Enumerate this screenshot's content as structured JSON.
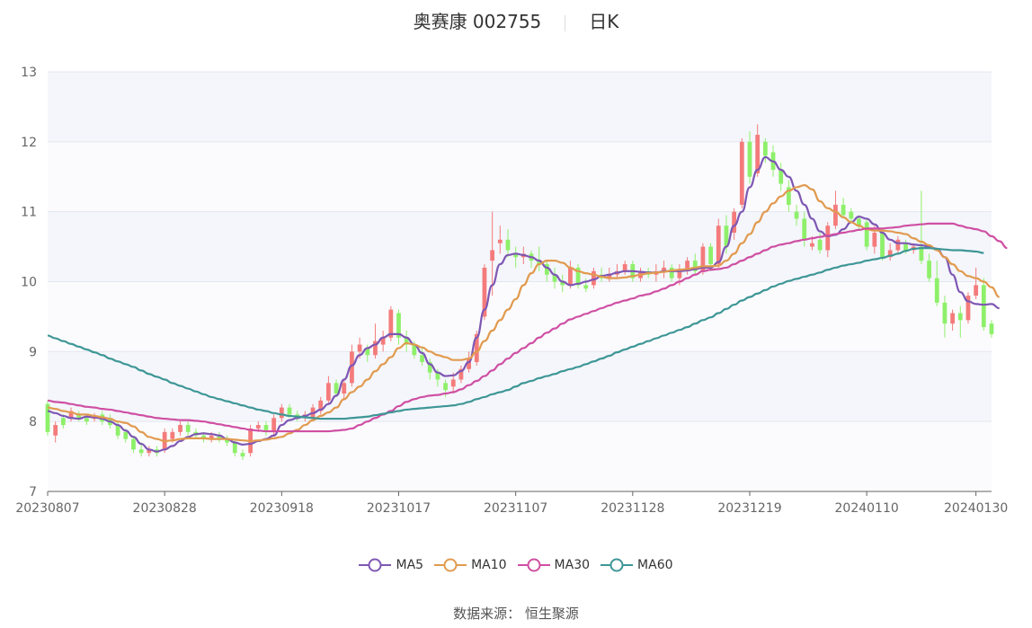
{
  "header": {
    "stock": "奥赛康 002755",
    "period": "日K"
  },
  "source": "数据来源： 恒生聚源",
  "colors": {
    "up": "#f47b7b",
    "down": "#8ef06a",
    "MA5": "#7e57b3",
    "MA10": "#e19a4f",
    "MA30": "#cf4fa3",
    "MA60": "#3e9696"
  },
  "chart_data": {
    "type": "candlestick",
    "ylim": [
      7,
      13
    ],
    "y_ticks": [
      "7",
      "8",
      "9",
      "10",
      "11",
      "12",
      "13"
    ],
    "x_tick_labels": [
      {
        "index": 0,
        "label": "20230807"
      },
      {
        "index": 15,
        "label": "20230828"
      },
      {
        "index": 30,
        "label": "20230918"
      },
      {
        "index": 45,
        "label": "20231017"
      },
      {
        "index": 60,
        "label": "20231107"
      },
      {
        "index": 75,
        "label": "20231128"
      },
      {
        "index": 90,
        "label": "20231219"
      },
      {
        "index": 105,
        "label": "20240110"
      },
      {
        "index": 119,
        "label": "20240130"
      }
    ],
    "grid": true,
    "legend_position": "bottom",
    "candles": [
      [
        8.25,
        7.85,
        8.3,
        7.8
      ],
      [
        7.8,
        7.95,
        8.0,
        7.7
      ],
      [
        8.05,
        7.95,
        8.1,
        7.9
      ],
      [
        8.05,
        8.15,
        8.2,
        8.0
      ],
      [
        8.1,
        8.05,
        8.15,
        8.0
      ],
      [
        8.05,
        8.0,
        8.1,
        7.95
      ],
      [
        8.05,
        8.05,
        8.12,
        8.0
      ],
      [
        8.1,
        8.0,
        8.15,
        7.95
      ],
      [
        8.05,
        7.95,
        8.1,
        7.9
      ],
      [
        7.95,
        7.8,
        8.0,
        7.75
      ],
      [
        7.85,
        7.75,
        7.9,
        7.7
      ],
      [
        7.75,
        7.6,
        7.8,
        7.55
      ],
      [
        7.6,
        7.55,
        7.7,
        7.5
      ],
      [
        7.55,
        7.6,
        7.65,
        7.5
      ],
      [
        7.6,
        7.55,
        7.65,
        7.5
      ],
      [
        7.6,
        7.85,
        7.9,
        7.55
      ],
      [
        7.75,
        7.85,
        7.9,
        7.7
      ],
      [
        7.85,
        7.95,
        8.0,
        7.8
      ],
      [
        7.95,
        7.85,
        8.0,
        7.8
      ],
      [
        7.85,
        7.8,
        7.9,
        7.75
      ],
      [
        7.8,
        7.75,
        7.85,
        7.7
      ],
      [
        7.75,
        7.8,
        7.85,
        7.7
      ],
      [
        7.8,
        7.75,
        7.85,
        7.7
      ],
      [
        7.75,
        7.7,
        7.8,
        7.65
      ],
      [
        7.7,
        7.55,
        7.75,
        7.5
      ],
      [
        7.55,
        7.5,
        7.6,
        7.45
      ],
      [
        7.55,
        7.9,
        7.95,
        7.5
      ],
      [
        7.9,
        7.95,
        8.0,
        7.85
      ],
      [
        7.95,
        7.85,
        8.0,
        7.8
      ],
      [
        7.85,
        8.05,
        8.1,
        7.8
      ],
      [
        8.05,
        8.2,
        8.25,
        8.0
      ],
      [
        8.2,
        8.1,
        8.25,
        8.05
      ],
      [
        8.1,
        8.05,
        8.15,
        8.0
      ],
      [
        8.05,
        8.1,
        8.15,
        8.0
      ],
      [
        8.05,
        8.2,
        8.25,
        8.0
      ],
      [
        8.15,
        8.3,
        8.35,
        8.1
      ],
      [
        8.3,
        8.55,
        8.65,
        8.25
      ],
      [
        8.55,
        8.4,
        8.6,
        8.35
      ],
      [
        8.4,
        8.55,
        8.6,
        8.3
      ],
      [
        8.55,
        9.0,
        9.1,
        8.5
      ],
      [
        9.0,
        9.1,
        9.2,
        8.9
      ],
      [
        9.05,
        8.95,
        9.1,
        8.85
      ],
      [
        8.95,
        9.15,
        9.4,
        8.9
      ],
      [
        9.1,
        9.2,
        9.3,
        9.0
      ],
      [
        9.2,
        9.6,
        9.65,
        9.15
      ],
      [
        9.55,
        9.2,
        9.6,
        9.1
      ],
      [
        9.2,
        9.1,
        9.3,
        9.0
      ],
      [
        9.1,
        8.95,
        9.15,
        8.9
      ],
      [
        8.95,
        8.85,
        9.05,
        8.8
      ],
      [
        8.85,
        8.7,
        8.9,
        8.6
      ],
      [
        8.7,
        8.6,
        8.75,
        8.5
      ],
      [
        8.55,
        8.45,
        8.6,
        8.35
      ],
      [
        8.5,
        8.6,
        8.7,
        8.4
      ],
      [
        8.6,
        8.75,
        8.8,
        8.55
      ],
      [
        8.75,
        8.9,
        9.0,
        8.7
      ],
      [
        8.85,
        9.25,
        9.3,
        8.8
      ],
      [
        9.5,
        10.2,
        10.25,
        9.45
      ],
      [
        10.3,
        10.45,
        11.0,
        9.8
      ],
      [
        10.55,
        10.6,
        10.8,
        10.4
      ],
      [
        10.6,
        10.45,
        10.75,
        10.35
      ],
      [
        10.4,
        10.35,
        10.5,
        10.2
      ],
      [
        10.35,
        10.4,
        10.5,
        10.25
      ],
      [
        10.4,
        10.3,
        10.45,
        10.2
      ],
      [
        10.3,
        10.25,
        10.5,
        10.15
      ],
      [
        10.25,
        10.1,
        10.3,
        10.0
      ],
      [
        10.1,
        10.0,
        10.2,
        9.9
      ],
      [
        10.0,
        9.95,
        10.1,
        9.85
      ],
      [
        9.95,
        10.2,
        10.3,
        9.9
      ],
      [
        10.2,
        9.95,
        10.25,
        9.9
      ],
      [
        9.95,
        9.9,
        10.05,
        9.85
      ],
      [
        9.95,
        10.15,
        10.2,
        9.9
      ],
      [
        10.1,
        10.05,
        10.2,
        10.0
      ],
      [
        10.05,
        10.1,
        10.2,
        10.0
      ],
      [
        10.1,
        10.15,
        10.25,
        10.05
      ],
      [
        10.15,
        10.25,
        10.3,
        10.1
      ],
      [
        10.25,
        10.05,
        10.3,
        10.0
      ],
      [
        10.05,
        10.15,
        10.2,
        10.0
      ],
      [
        10.15,
        10.1,
        10.2,
        10.05
      ],
      [
        10.1,
        10.15,
        10.25,
        10.0
      ],
      [
        10.15,
        10.2,
        10.3,
        10.05
      ],
      [
        10.2,
        10.05,
        10.25,
        10.0
      ],
      [
        10.05,
        10.15,
        10.25,
        9.95
      ],
      [
        10.15,
        10.3,
        10.35,
        10.1
      ],
      [
        10.3,
        10.15,
        10.4,
        10.1
      ],
      [
        10.15,
        10.5,
        10.55,
        10.1
      ],
      [
        10.5,
        10.25,
        10.55,
        10.15
      ],
      [
        10.25,
        10.8,
        10.9,
        10.2
      ],
      [
        10.8,
        10.5,
        10.95,
        10.4
      ],
      [
        10.7,
        11.0,
        11.05,
        10.6
      ],
      [
        11.1,
        12.0,
        12.05,
        11.05
      ],
      [
        12.0,
        11.5,
        12.15,
        11.4
      ],
      [
        11.55,
        12.1,
        12.25,
        11.5
      ],
      [
        12.0,
        11.8,
        12.05,
        11.7
      ],
      [
        11.85,
        11.6,
        11.95,
        11.5
      ],
      [
        11.6,
        11.4,
        11.7,
        11.3
      ],
      [
        11.35,
        11.1,
        11.45,
        11.0
      ],
      [
        11.0,
        10.9,
        11.1,
        10.8
      ],
      [
        10.9,
        10.6,
        11.0,
        10.5
      ],
      [
        10.5,
        10.55,
        10.65,
        10.45
      ],
      [
        10.6,
        10.45,
        10.7,
        10.4
      ],
      [
        10.45,
        10.8,
        10.85,
        10.35
      ],
      [
        10.8,
        11.1,
        11.3,
        10.75
      ],
      [
        11.1,
        10.95,
        11.2,
        10.9
      ],
      [
        11.0,
        10.9,
        11.05,
        10.85
      ],
      [
        10.9,
        10.8,
        10.95,
        10.75
      ],
      [
        10.85,
        10.5,
        10.9,
        10.45
      ],
      [
        10.5,
        10.7,
        10.8,
        10.4
      ],
      [
        10.7,
        10.35,
        10.75,
        10.3
      ],
      [
        10.35,
        10.45,
        10.55,
        10.3
      ],
      [
        10.45,
        10.6,
        10.65,
        10.4
      ],
      [
        10.55,
        10.45,
        10.6,
        10.4
      ],
      [
        10.45,
        10.5,
        10.55,
        10.4
      ],
      [
        10.5,
        10.3,
        11.3,
        10.25
      ],
      [
        10.3,
        10.05,
        10.4,
        10.0
      ],
      [
        10.05,
        9.7,
        10.3,
        9.65
      ],
      [
        9.7,
        9.4,
        9.8,
        9.2
      ],
      [
        9.4,
        9.55,
        9.6,
        9.3
      ],
      [
        9.55,
        9.45,
        9.65,
        9.2
      ],
      [
        9.45,
        9.8,
        9.85,
        9.4
      ],
      [
        9.8,
        9.95,
        10.2,
        9.75
      ],
      [
        9.95,
        9.35,
        10.05,
        9.3
      ],
      [
        9.4,
        9.25,
        9.45,
        9.2
      ]
    ],
    "series": [
      {
        "name": "MA5",
        "values": [
          8.15,
          8.12,
          8.08,
          8.05,
          8.04,
          8.07,
          8.06,
          8.04,
          8.0,
          7.95,
          7.87,
          7.78,
          7.68,
          7.6,
          7.57,
          7.6,
          7.65,
          7.72,
          7.78,
          7.82,
          7.83,
          7.82,
          7.8,
          7.75,
          7.7,
          7.67,
          7.68,
          7.72,
          7.75,
          7.8,
          7.95,
          8.02,
          8.05,
          8.08,
          8.12,
          8.17,
          8.25,
          8.37,
          8.6,
          8.8,
          8.95,
          9.05,
          9.1,
          9.2,
          9.25,
          9.25,
          9.2,
          9.1,
          8.98,
          8.82,
          8.7,
          8.65,
          8.66,
          8.72,
          8.85,
          9.2,
          9.6,
          9.95,
          10.25,
          10.38,
          10.4,
          10.38,
          10.35,
          10.3,
          10.2,
          10.1,
          10.0,
          9.95,
          9.97,
          10.0,
          10.03,
          10.08,
          10.1,
          10.13,
          10.15,
          10.15,
          10.14,
          10.13,
          10.13,
          10.15,
          10.15,
          10.15,
          10.16,
          10.18,
          10.2,
          10.2,
          10.28,
          10.5,
          10.8,
          11.0,
          11.35,
          11.6,
          11.78,
          11.72,
          11.6,
          11.5,
          11.3,
          11.1,
          10.9,
          10.72,
          10.65,
          10.67,
          10.75,
          10.85,
          10.93,
          10.9,
          10.82,
          10.7,
          10.6,
          10.55,
          10.55,
          10.53,
          10.52,
          10.5,
          10.47,
          10.35,
          10.1,
          9.85,
          9.72,
          9.68,
          9.67,
          9.68,
          9.62
        ]
      },
      {
        "name": "MA10",
        "values": [
          8.2,
          8.18,
          8.15,
          8.13,
          8.1,
          8.1,
          8.08,
          8.06,
          8.04,
          8.0,
          7.98,
          7.93,
          7.85,
          7.78,
          7.75,
          7.72,
          7.73,
          7.75,
          7.76,
          7.76,
          7.76,
          7.75,
          7.75,
          7.75,
          7.74,
          7.73,
          7.72,
          7.73,
          7.74,
          7.76,
          7.78,
          7.83,
          7.88,
          7.95,
          8.02,
          8.08,
          8.13,
          8.2,
          8.32,
          8.42,
          8.5,
          8.6,
          8.72,
          8.82,
          8.92,
          9.05,
          9.12,
          9.1,
          9.06,
          9.0,
          8.95,
          8.92,
          8.88,
          8.88,
          8.9,
          9.0,
          9.15,
          9.3,
          9.45,
          9.6,
          9.75,
          9.95,
          10.12,
          10.25,
          10.3,
          10.3,
          10.27,
          10.2,
          10.15,
          10.12,
          10.1,
          10.07,
          10.05,
          10.05,
          10.06,
          10.08,
          10.1,
          10.12,
          10.13,
          10.14,
          10.16,
          10.17,
          10.18,
          10.2,
          10.22,
          10.22,
          10.23,
          10.3,
          10.4,
          10.55,
          10.68,
          10.85,
          11.0,
          11.12,
          11.22,
          11.3,
          11.35,
          11.38,
          11.32,
          11.15,
          11.05,
          11.0,
          10.92,
          10.85,
          10.8,
          10.75,
          10.73,
          10.73,
          10.72,
          10.7,
          10.68,
          10.62,
          10.57,
          10.52,
          10.45,
          10.35,
          10.25,
          10.15,
          10.08,
          10.05,
          10.0,
          9.92,
          9.78
        ]
      },
      {
        "name": "MA30",
        "values": [
          8.3,
          8.28,
          8.27,
          8.25,
          8.23,
          8.21,
          8.2,
          8.18,
          8.17,
          8.15,
          8.13,
          8.11,
          8.09,
          8.07,
          8.05,
          8.04,
          8.03,
          8.02,
          8.02,
          8.01,
          8.0,
          7.98,
          7.96,
          7.94,
          7.92,
          7.9,
          7.88,
          7.87,
          7.86,
          7.86,
          7.86,
          7.86,
          7.86,
          7.86,
          7.86,
          7.86,
          7.86,
          7.87,
          7.88,
          7.9,
          7.95,
          8.0,
          8.05,
          8.1,
          8.15,
          8.22,
          8.28,
          8.32,
          8.35,
          8.37,
          8.38,
          8.4,
          8.42,
          8.46,
          8.52,
          8.58,
          8.65,
          8.73,
          8.82,
          8.9,
          8.98,
          9.05,
          9.12,
          9.2,
          9.27,
          9.33,
          9.4,
          9.46,
          9.5,
          9.54,
          9.58,
          9.62,
          9.66,
          9.7,
          9.73,
          9.76,
          9.8,
          9.82,
          9.86,
          9.9,
          9.95,
          10.0,
          10.05,
          10.1,
          10.15,
          10.17,
          10.18,
          10.2,
          10.25,
          10.3,
          10.35,
          10.4,
          10.45,
          10.5,
          10.53,
          10.55,
          10.58,
          10.6,
          10.62,
          10.64,
          10.66,
          10.68,
          10.7,
          10.72,
          10.74,
          10.76,
          10.76,
          10.76,
          10.77,
          10.78,
          10.8,
          10.81,
          10.82,
          10.83,
          10.83,
          10.83,
          10.83,
          10.8,
          10.77,
          10.75,
          10.72,
          10.65,
          10.58,
          10.48
        ]
      },
      {
        "name": "MA60",
        "values": [
          9.23,
          9.19,
          9.15,
          9.11,
          9.07,
          9.03,
          8.99,
          8.95,
          8.9,
          8.86,
          8.82,
          8.78,
          8.73,
          8.68,
          8.64,
          8.6,
          8.55,
          8.51,
          8.47,
          8.43,
          8.39,
          8.35,
          8.32,
          8.29,
          8.26,
          8.23,
          8.2,
          8.17,
          8.15,
          8.12,
          8.1,
          8.08,
          8.07,
          8.06,
          8.05,
          8.04,
          8.04,
          8.04,
          8.04,
          8.05,
          8.06,
          8.07,
          8.09,
          8.11,
          8.13,
          8.15,
          8.17,
          8.18,
          8.19,
          8.2,
          8.21,
          8.22,
          8.23,
          8.25,
          8.28,
          8.32,
          8.35,
          8.39,
          8.42,
          8.45,
          8.5,
          8.55,
          8.58,
          8.62,
          8.65,
          8.68,
          8.72,
          8.75,
          8.78,
          8.82,
          8.86,
          8.9,
          8.94,
          8.99,
          9.03,
          9.07,
          9.11,
          9.15,
          9.19,
          9.23,
          9.27,
          9.31,
          9.35,
          9.4,
          9.45,
          9.49,
          9.55,
          9.61,
          9.67,
          9.73,
          9.78,
          9.83,
          9.88,
          9.93,
          9.97,
          10.01,
          10.04,
          10.07,
          10.1,
          10.13,
          10.17,
          10.2,
          10.23,
          10.25,
          10.27,
          10.3,
          10.32,
          10.34,
          10.37,
          10.4,
          10.44,
          10.47,
          10.48,
          10.48,
          10.47,
          10.46,
          10.45,
          10.45,
          10.44,
          10.43,
          10.41
        ]
      }
    ]
  },
  "legend": [
    {
      "name": "MA5",
      "key": "MA5"
    },
    {
      "name": "MA10",
      "key": "MA10"
    },
    {
      "name": "MA30",
      "key": "MA30"
    },
    {
      "name": "MA60",
      "key": "MA60"
    }
  ]
}
